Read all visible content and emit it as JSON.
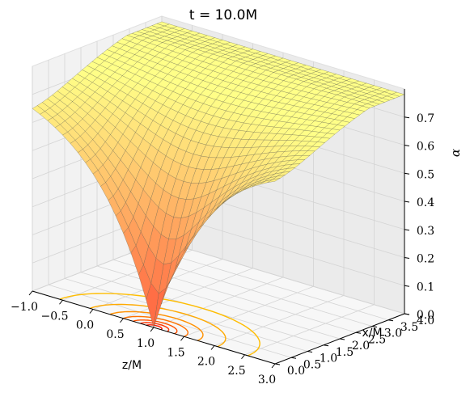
{
  "chart_data": {
    "type": "surface3d",
    "title": "t = 10.0M",
    "xlabel": "z/M",
    "ylabel": "x/M",
    "zlabel": "α",
    "xlim": [
      -1.0,
      3.0
    ],
    "ylim": [
      0.0,
      4.0
    ],
    "zlim": [
      0.0,
      0.75
    ],
    "x_ticks": [
      "−1.0",
      "−0.5",
      "0.0",
      "0.5",
      "1.0",
      "1.5",
      "2.0",
      "2.5",
      "3.0"
    ],
    "y_ticks": [
      "0.0",
      "0.5",
      "1.0",
      "1.5",
      "2.0",
      "2.5",
      "3.0",
      "3.5",
      "4.0"
    ],
    "z_ticks": [
      "0.0",
      "0.1",
      "0.2",
      "0.3",
      "0.4",
      "0.5",
      "0.6",
      "0.7"
    ],
    "grid": true,
    "colormap": "autumn",
    "surface_color_low": "#ff5a3c",
    "surface_color_high": "#ffff88",
    "contour_projection": {
      "plane": "z = 0",
      "center": [
        1.0,
        0.0
      ],
      "levels": [
        0.1,
        0.2,
        0.3,
        0.4,
        0.5,
        0.6,
        0.7
      ],
      "radii": [
        0.12,
        0.22,
        0.34,
        0.5,
        0.72,
        1.05,
        1.55
      ],
      "colors": [
        "#ff1a00",
        "#ff3300",
        "#ff5200",
        "#ff7200",
        "#ff9000",
        "#ffaa00",
        "#ffbd00"
      ]
    },
    "surface_samples": [
      {
        "x": 1.0,
        "y": 0.0,
        "alpha": 0.0
      },
      {
        "x": 1.0,
        "y": 0.5,
        "alpha": 0.18
      },
      {
        "x": 1.0,
        "y": 1.0,
        "alpha": 0.31
      },
      {
        "x": 1.0,
        "y": 2.0,
        "alpha": 0.47
      },
      {
        "x": 1.0,
        "y": 3.0,
        "alpha": 0.57
      },
      {
        "x": 1.0,
        "y": 4.0,
        "alpha": 0.63
      },
      {
        "x": -1.0,
        "y": 0.0,
        "alpha": 0.4
      },
      {
        "x": 3.0,
        "y": 0.0,
        "alpha": 0.52
      },
      {
        "x": -1.0,
        "y": 4.0,
        "alpha": 0.72
      },
      {
        "x": 3.0,
        "y": 4.0,
        "alpha": 0.75
      }
    ]
  }
}
